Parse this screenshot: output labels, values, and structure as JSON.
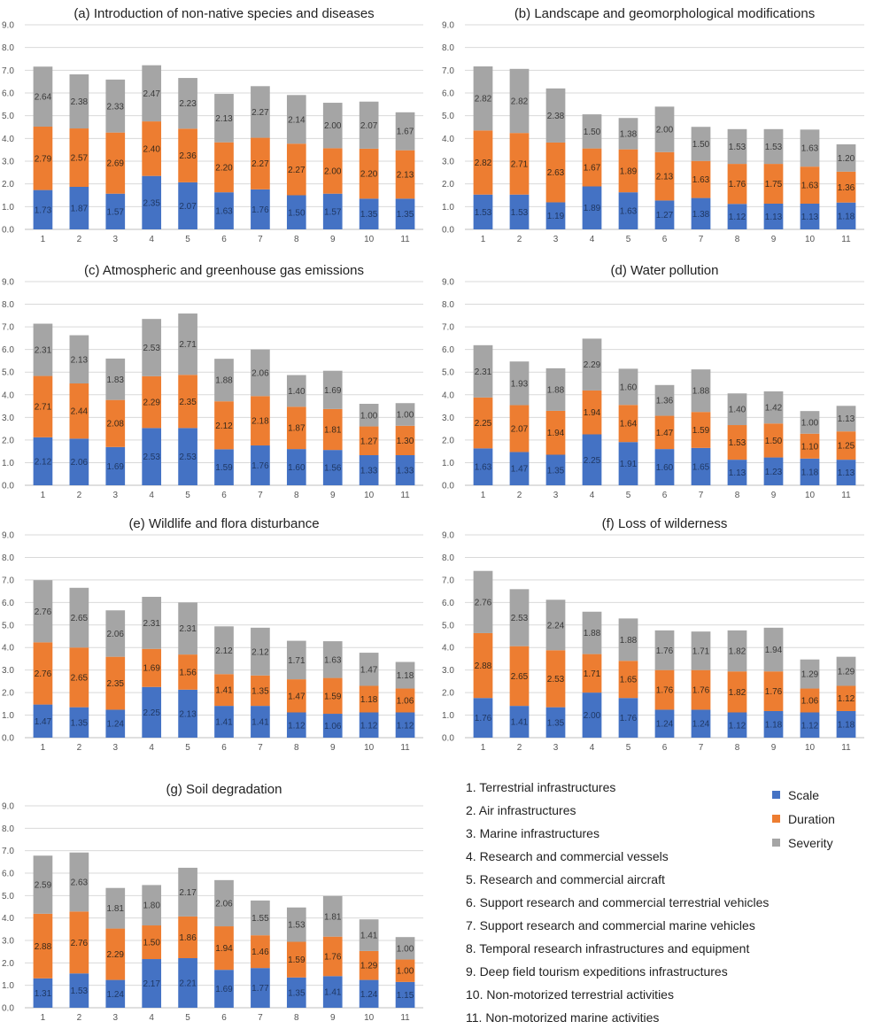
{
  "chart_data": [
    {
      "type": "bar",
      "stacked": true,
      "title": "(a)  Introduction of non-native species and diseases",
      "categories": [
        "1",
        "2",
        "3",
        "4",
        "5",
        "6",
        "7",
        "8",
        "9",
        "10",
        "11"
      ],
      "ylim": [
        0,
        9
      ],
      "yticks": [
        "0.0",
        "1.0",
        "2.0",
        "3.0",
        "4.0",
        "5.0",
        "6.0",
        "7.0",
        "8.0",
        "9.0"
      ],
      "series": [
        {
          "name": "Scale",
          "values": [
            1.73,
            1.87,
            1.57,
            2.35,
            2.07,
            1.63,
            1.76,
            1.5,
            1.57,
            1.35,
            1.35
          ],
          "labels": [
            "1.73",
            "1.87",
            "1.57",
            "2.35",
            "2.07",
            "1.63",
            "1.76",
            "1.50",
            "1.57",
            "1.35",
            "1.35"
          ]
        },
        {
          "name": "Duration",
          "values": [
            2.79,
            2.57,
            2.69,
            2.4,
            2.36,
            2.2,
            2.27,
            2.27,
            2.0,
            2.2,
            2.13
          ],
          "labels": [
            "2.79",
            "2.57",
            "2.69",
            "2.40",
            "2.36",
            "2.20",
            "2.27",
            "2.27",
            "2.00",
            "2.20",
            "2.13"
          ]
        },
        {
          "name": "Severity",
          "values": [
            2.64,
            2.38,
            2.33,
            2.47,
            2.23,
            2.13,
            2.27,
            2.14,
            2.0,
            2.07,
            1.67
          ],
          "labels": [
            "2.64",
            "2.38",
            "2.33",
            "2.47",
            "2.23",
            "2.13",
            "2.27",
            "2.14",
            "2.00",
            "2.07",
            "1.67"
          ]
        }
      ]
    },
    {
      "type": "bar",
      "stacked": true,
      "title": "(b)  Landscape and geomorphological modifications",
      "categories": [
        "1",
        "2",
        "3",
        "4",
        "5",
        "6",
        "7",
        "8",
        "9",
        "10",
        "11"
      ],
      "ylim": [
        0,
        9
      ],
      "yticks": [
        "0.0",
        "1.0",
        "2.0",
        "3.0",
        "4.0",
        "5.0",
        "6.0",
        "7.0",
        "8.0",
        "9.0"
      ],
      "series": [
        {
          "name": "Scale",
          "values": [
            1.53,
            1.53,
            1.19,
            1.89,
            1.63,
            1.27,
            1.38,
            1.12,
            1.13,
            1.13,
            1.18
          ],
          "labels": [
            "1.53",
            "1.53",
            "1.19",
            "1.89",
            "1.63",
            "1.27",
            "1.38",
            "1.12",
            "1.13",
            "1.13",
            "1.18"
          ]
        },
        {
          "name": "Duration",
          "values": [
            2.82,
            2.71,
            2.63,
            1.67,
            1.89,
            2.13,
            1.63,
            1.76,
            1.75,
            1.63,
            1.36
          ],
          "labels": [
            "2.82",
            "2.71",
            "2.63",
            "1.67",
            "1.89",
            "2.13",
            "1.63",
            "1.76",
            "1.75",
            "1.63",
            "1.36"
          ]
        },
        {
          "name": "Severity",
          "values": [
            2.82,
            2.82,
            2.38,
            1.5,
            1.38,
            2.0,
            1.5,
            1.53,
            1.53,
            1.63,
            1.2
          ],
          "labels": [
            "2.82",
            "2.82",
            "2.38",
            "1.50",
            "1.38",
            "2.00",
            "1.50",
            "1.53",
            "1.53",
            "1.63",
            "1.20"
          ]
        }
      ]
    },
    {
      "type": "bar",
      "stacked": true,
      "title": "(c)  Atmospheric and greenhouse gas emissions",
      "categories": [
        "1",
        "2",
        "3",
        "4",
        "5",
        "6",
        "7",
        "8",
        "9",
        "10",
        "11"
      ],
      "ylim": [
        0,
        9
      ],
      "yticks": [
        "0.0",
        "1.0",
        "2.0",
        "3.0",
        "4.0",
        "5.0",
        "6.0",
        "7.0",
        "8.0",
        "9.0"
      ],
      "series": [
        {
          "name": "Scale",
          "values": [
            2.12,
            2.06,
            1.69,
            2.53,
            2.53,
            1.59,
            1.76,
            1.6,
            1.56,
            1.33,
            1.33
          ],
          "labels": [
            "2.12",
            "2.06",
            "1.69",
            "2.53",
            "2.53",
            "1.59",
            "1.76",
            "1.60",
            "1.56",
            "1.33",
            "1.33"
          ]
        },
        {
          "name": "Duration",
          "values": [
            2.71,
            2.44,
            2.08,
            2.29,
            2.35,
            2.12,
            2.18,
            1.87,
            1.81,
            1.27,
            1.3
          ],
          "labels": [
            "2.71",
            "2.44",
            "2.08",
            "2.29",
            "2.35",
            "2.12",
            "2.18",
            "1.87",
            "1.81",
            "1.27",
            "1.30"
          ]
        },
        {
          "name": "Severity",
          "values": [
            2.31,
            2.13,
            1.83,
            2.53,
            2.71,
            1.88,
            2.06,
            1.4,
            1.69,
            1.0,
            1.0
          ],
          "labels": [
            "2.31",
            "2.13",
            "1.83",
            "2.53",
            "2.71",
            "1.88",
            "2.06",
            "1.40",
            "1.69",
            "1.00",
            "1.00"
          ]
        }
      ]
    },
    {
      "type": "bar",
      "stacked": true,
      "title": "(d)  Water pollution",
      "categories": [
        "1",
        "2",
        "3",
        "4",
        "5",
        "6",
        "7",
        "8",
        "9",
        "10",
        "11"
      ],
      "ylim": [
        0,
        9
      ],
      "yticks": [
        "0.0",
        "1.0",
        "2.0",
        "3.0",
        "4.0",
        "5.0",
        "6.0",
        "7.0",
        "8.0",
        "9.0"
      ],
      "series": [
        {
          "name": "Scale",
          "values": [
            1.63,
            1.47,
            1.35,
            2.25,
            1.91,
            1.6,
            1.65,
            1.13,
            1.23,
            1.18,
            1.13
          ],
          "labels": [
            "1.63",
            "1.47",
            "1.35",
            "2.25",
            "1.91",
            "1.60",
            "1.65",
            "1.13",
            "1.23",
            "1.18",
            "1.13"
          ]
        },
        {
          "name": "Duration",
          "values": [
            2.25,
            2.07,
            1.94,
            1.94,
            1.64,
            1.47,
            1.59,
            1.53,
            1.5,
            1.1,
            1.25
          ],
          "labels": [
            "2.25",
            "2.07",
            "1.94",
            "1.94",
            "1.64",
            "1.47",
            "1.59",
            "1.53",
            "1.50",
            "1.10",
            "1.25"
          ]
        },
        {
          "name": "Severity",
          "values": [
            2.31,
            1.93,
            1.88,
            2.29,
            1.6,
            1.36,
            1.88,
            1.4,
            1.42,
            1.0,
            1.13
          ],
          "labels": [
            "2.31",
            "1.93",
            "1.88",
            "2.29",
            "1.60",
            "1.36",
            "1.88",
            "1.40",
            "1.42",
            "1.00",
            "1.13"
          ]
        }
      ]
    },
    {
      "type": "bar",
      "stacked": true,
      "title": "(e)  Wildlife and flora disturbance",
      "categories": [
        "1",
        "2",
        "3",
        "4",
        "5",
        "6",
        "7",
        "8",
        "9",
        "10",
        "11"
      ],
      "ylim": [
        0,
        9
      ],
      "yticks": [
        "0.0",
        "1.0",
        "2.0",
        "3.0",
        "4.0",
        "5.0",
        "6.0",
        "7.0",
        "8.0",
        "9.0"
      ],
      "series": [
        {
          "name": "Scale",
          "values": [
            1.47,
            1.35,
            1.24,
            2.25,
            2.13,
            1.41,
            1.41,
            1.12,
            1.06,
            1.12,
            1.12
          ],
          "labels": [
            "1.47",
            "1.35",
            "1.24",
            "2.25",
            "2.13",
            "1.41",
            "1.41",
            "1.12",
            "1.06",
            "1.12",
            "1.12"
          ]
        },
        {
          "name": "Duration",
          "values": [
            2.76,
            2.65,
            2.35,
            1.69,
            1.56,
            1.41,
            1.35,
            1.47,
            1.59,
            1.18,
            1.06
          ],
          "labels": [
            "2.76",
            "2.65",
            "2.35",
            "1.69",
            "1.56",
            "1.41",
            "1.35",
            "1.47",
            "1.59",
            "1.18",
            "1.06"
          ]
        },
        {
          "name": "Severity",
          "values": [
            2.76,
            2.65,
            2.06,
            2.31,
            2.31,
            2.12,
            2.12,
            1.71,
            1.63,
            1.47,
            1.18
          ],
          "labels": [
            "2.76",
            "2.65",
            "2.06",
            "2.31",
            "2.31",
            "2.12",
            "2.12",
            "1.71",
            "1.63",
            "1.47",
            "1.18"
          ]
        }
      ]
    },
    {
      "type": "bar",
      "stacked": true,
      "title": "(f)  Loss of wilderness",
      "categories": [
        "1",
        "2",
        "3",
        "4",
        "5",
        "6",
        "7",
        "8",
        "9",
        "10",
        "11"
      ],
      "ylim": [
        0,
        9
      ],
      "yticks": [
        "0.0",
        "1.0",
        "2.0",
        "3.0",
        "4.0",
        "5.0",
        "6.0",
        "7.0",
        "8.0",
        "9.0"
      ],
      "series": [
        {
          "name": "Scale",
          "values": [
            1.76,
            1.41,
            1.35,
            2.0,
            1.76,
            1.24,
            1.24,
            1.12,
            1.18,
            1.12,
            1.18
          ],
          "labels": [
            "1.76",
            "1.41",
            "1.35",
            "2.00",
            "1.76",
            "1.24",
            "1.24",
            "1.12",
            "1.18",
            "1.12",
            "1.18"
          ]
        },
        {
          "name": "Duration",
          "values": [
            2.88,
            2.65,
            2.53,
            1.71,
            1.65,
            1.76,
            1.76,
            1.82,
            1.76,
            1.06,
            1.12
          ],
          "labels": [
            "2.88",
            "2.65",
            "2.53",
            "1.71",
            "1.65",
            "1.76",
            "1.76",
            "1.82",
            "1.76",
            "1.06",
            "1.12"
          ]
        },
        {
          "name": "Severity",
          "values": [
            2.76,
            2.53,
            2.24,
            1.88,
            1.88,
            1.76,
            1.71,
            1.82,
            1.94,
            1.29,
            1.29
          ],
          "labels": [
            "2.76",
            "2.53",
            "2.24",
            "1.88",
            "1.88",
            "1.76",
            "1.71",
            "1.82",
            "1.94",
            "1.29",
            "1.29"
          ]
        }
      ]
    },
    {
      "type": "bar",
      "stacked": true,
      "title": "(g)  Soil degradation",
      "categories": [
        "1",
        "2",
        "3",
        "4",
        "5",
        "6",
        "7",
        "8",
        "9",
        "10",
        "11"
      ],
      "ylim": [
        0,
        9
      ],
      "yticks": [
        "0.0",
        "1.0",
        "2.0",
        "3.0",
        "4.0",
        "5.0",
        "6.0",
        "7.0",
        "8.0",
        "9.0"
      ],
      "series": [
        {
          "name": "Scale",
          "values": [
            1.31,
            1.53,
            1.24,
            2.17,
            2.21,
            1.69,
            1.77,
            1.35,
            1.41,
            1.24,
            1.15
          ],
          "labels": [
            "1.31",
            "1.53",
            "1.24",
            "2.17",
            "2.21",
            "1.69",
            "1.77",
            "1.35",
            "1.41",
            "1.24",
            "1.15"
          ]
        },
        {
          "name": "Duration",
          "values": [
            2.88,
            2.76,
            2.29,
            1.5,
            1.86,
            1.94,
            1.46,
            1.59,
            1.76,
            1.29,
            1.0
          ],
          "labels": [
            "2.88",
            "2.76",
            "2.29",
            "1.50",
            "1.86",
            "1.94",
            "1.46",
            "1.59",
            "1.76",
            "1.29",
            "1.00"
          ]
        },
        {
          "name": "Severity",
          "values": [
            2.59,
            2.63,
            1.81,
            1.8,
            2.17,
            2.06,
            1.55,
            1.53,
            1.81,
            1.41,
            1.0
          ],
          "labels": [
            "2.59",
            "2.63",
            "1.81",
            "1.80",
            "2.17",
            "2.06",
            "1.55",
            "1.53",
            "1.81",
            "1.41",
            "1.00"
          ]
        }
      ]
    }
  ],
  "category_legend": [
    "1. Terrestrial infrastructures",
    "2. Air infrastructures",
    "3. Marine infrastructures",
    "4. Research and commercial vessels",
    "5. Research and commercial aircraft",
    "6. Support research and commercial terrestrial vehicles",
    "7. Support research and commercial marine vehicles",
    "8. Temporal research infrastructures and equipment",
    "9. Deep field tourism expeditions infrastructures",
    "10. Non-motorized terrestrial activities",
    "11. Non-motorized marine activities"
  ],
  "series_legend": [
    {
      "name": "Scale",
      "color": "#4472C4"
    },
    {
      "name": "Duration",
      "color": "#ED7D31"
    },
    {
      "name": "Severity",
      "color": "#A5A5A5"
    }
  ],
  "colors": {
    "scale": "#4472C4",
    "duration": "#ED7D31",
    "severity": "#A5A5A5",
    "grid": "#D9D9D9",
    "axis": "#BFBFBF"
  }
}
